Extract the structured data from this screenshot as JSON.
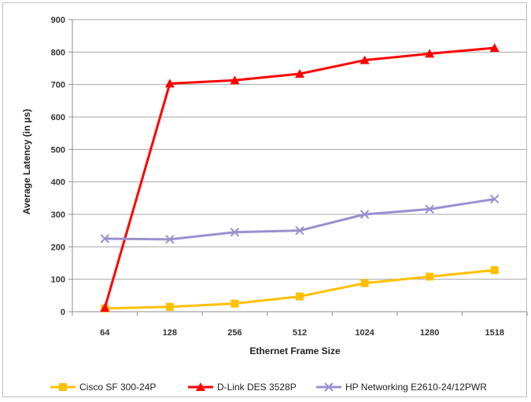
{
  "chart_data": {
    "type": "line",
    "title": "",
    "xlabel": "Ethernet Frame Size",
    "ylabel": "Average Latency (in µs)",
    "categories": [
      "64",
      "128",
      "256",
      "512",
      "1024",
      "1280",
      "1518"
    ],
    "ylim": [
      0,
      900
    ],
    "yticks": [
      0,
      100,
      200,
      300,
      400,
      500,
      600,
      700,
      800,
      900
    ],
    "grid": "horizontal",
    "legend_position": "bottom",
    "series": [
      {
        "name": "Cisco SF 300-24P",
        "color": "#FFC000",
        "marker": "square",
        "values": [
          10,
          15,
          25,
          47,
          88,
          108,
          128
        ]
      },
      {
        "name": "D-Link DES 3528P",
        "color": "#FF0000",
        "marker": "triangle",
        "values": [
          12,
          703,
          713,
          733,
          775,
          795,
          813
        ]
      },
      {
        "name": "HP Networking E2610-24/12PWR",
        "color": "#9B8FD0",
        "marker": "x",
        "values": [
          225,
          223,
          245,
          250,
          300,
          316,
          347
        ]
      }
    ]
  }
}
